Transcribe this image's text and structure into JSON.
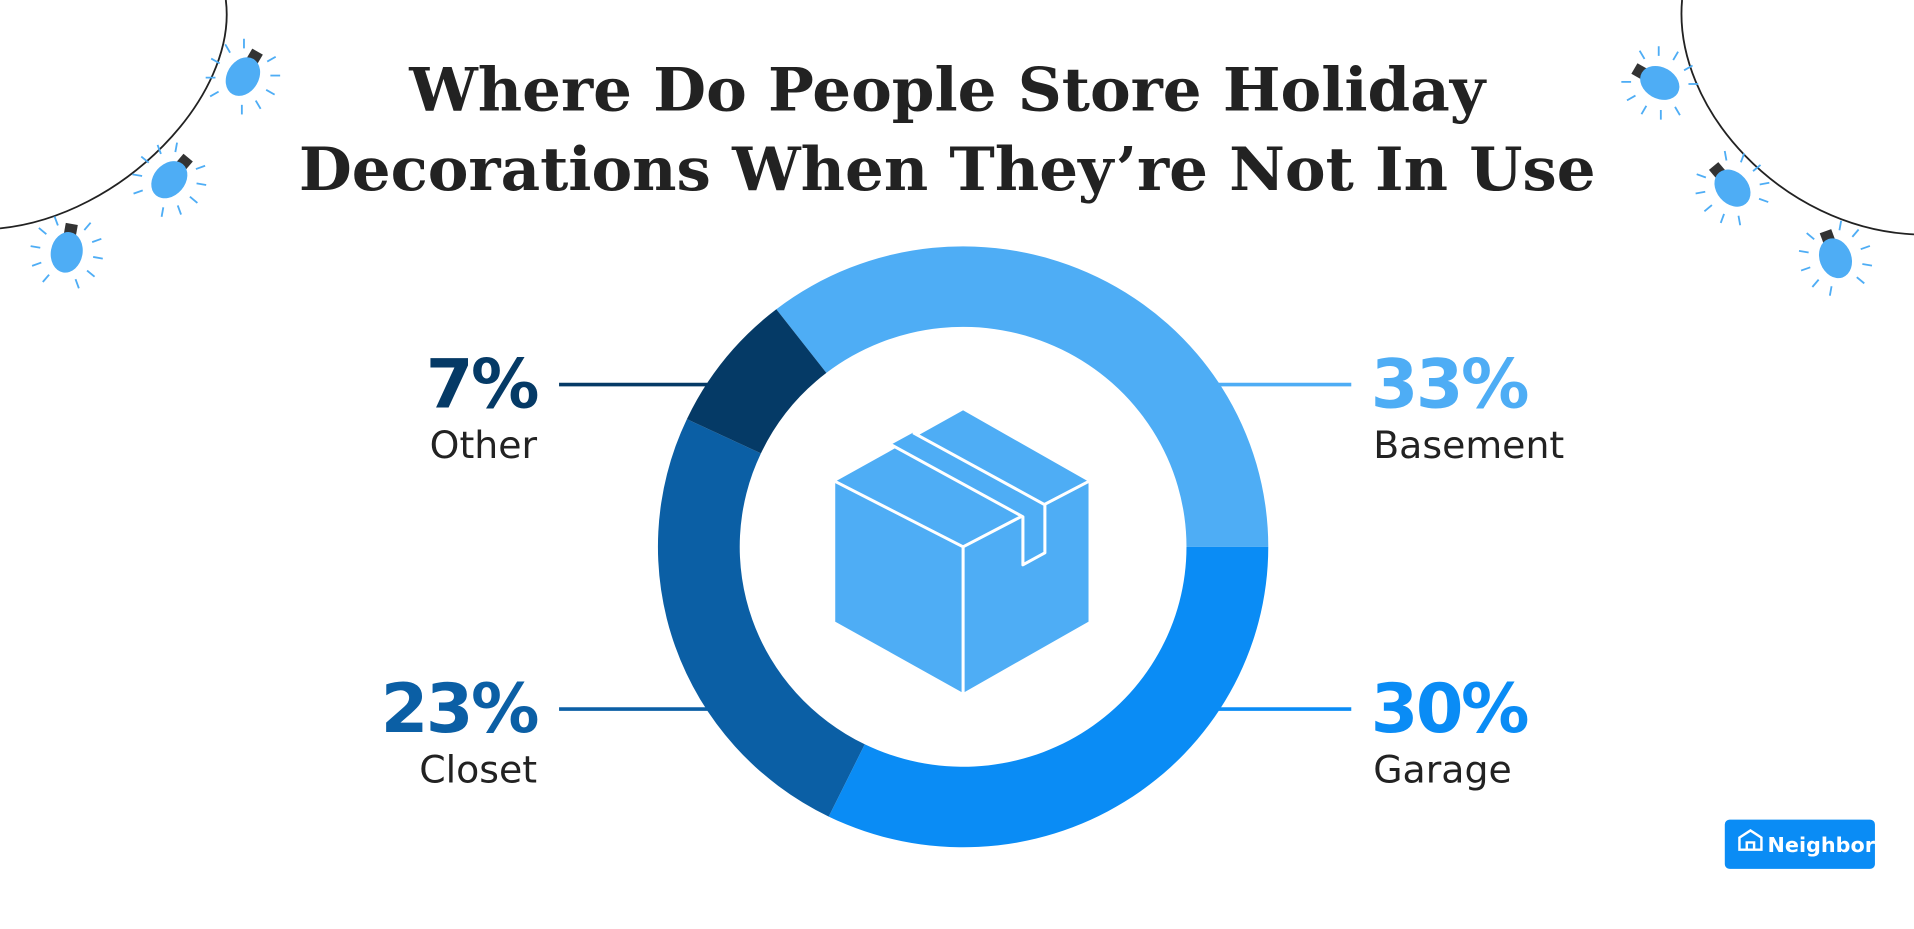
{
  "chart_data": {
    "type": "donut",
    "title": [
      "Where Do People Store Holiday",
      "Decorations When They’re Not In Use"
    ],
    "categories": [
      "Basement",
      "Garage",
      "Closet",
      "Other"
    ],
    "values": [
      33,
      30,
      23,
      7
    ],
    "value_labels": [
      "33%",
      "30%",
      "23%",
      "7%"
    ],
    "colors": [
      "#4eadf5",
      "#0a8cf5",
      "#0b5fa5",
      "#053a66"
    ]
  },
  "logo": "Neighbor"
}
